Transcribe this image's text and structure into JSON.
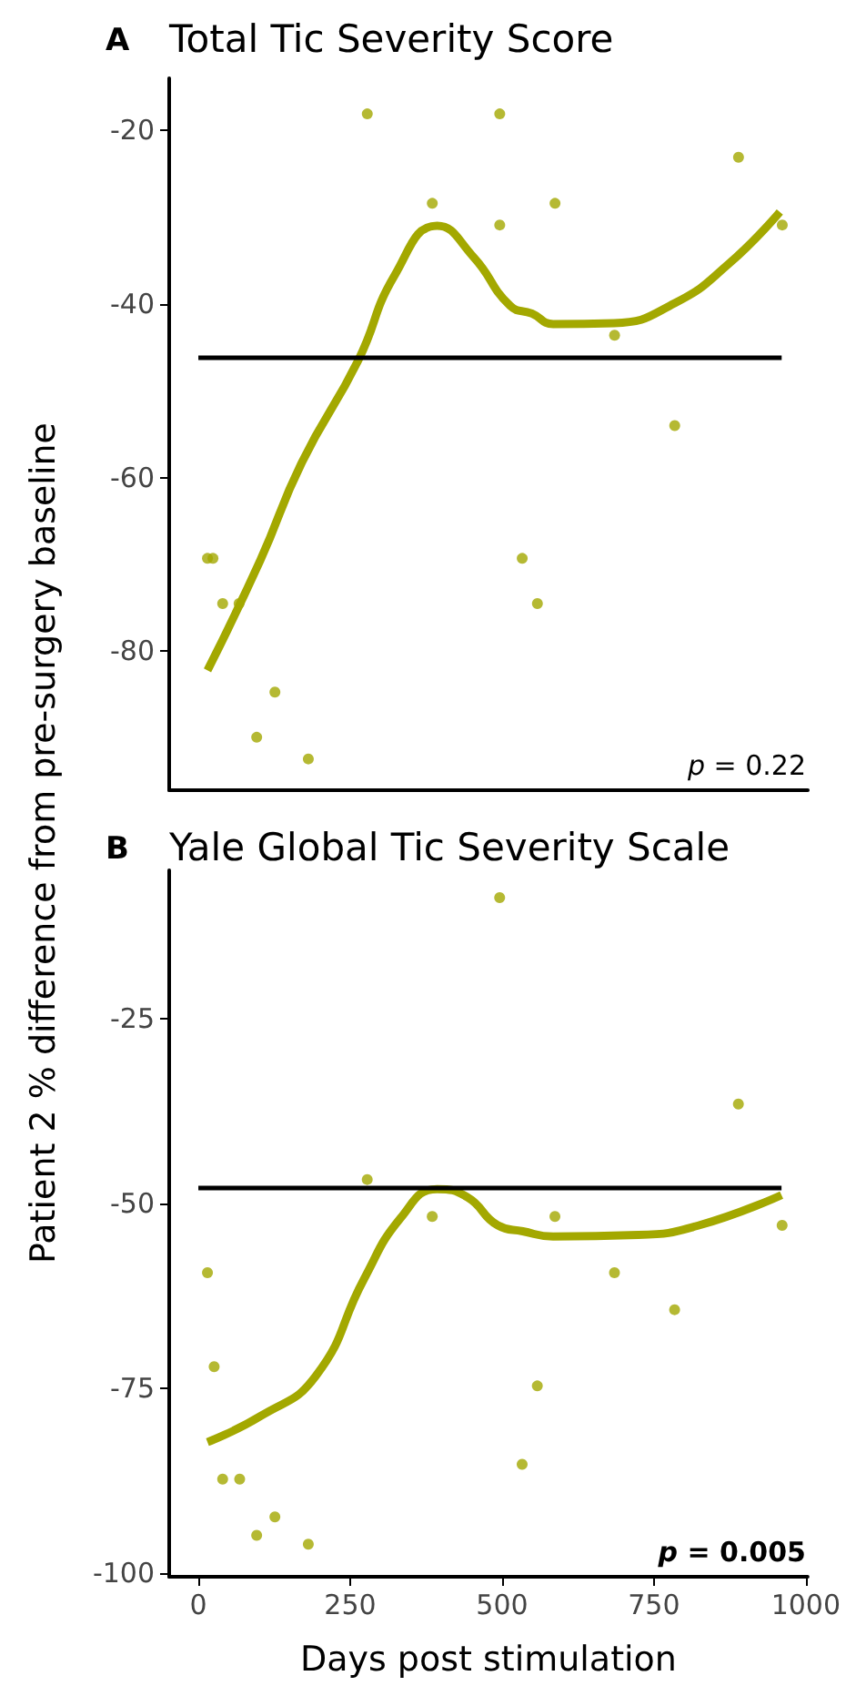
{
  "chart_data": [
    {
      "type": "scatter",
      "title": "Total Tic Severity Score",
      "ylabel": "Patient 2 % difference from pre-surgery baseline",
      "annotations": [
        "A",
        "p = 0.22"
      ],
      "xlim": [
        -48,
        1003
      ],
      "ylim": [
        -96,
        -14
      ],
      "yticks": [
        -20,
        -40,
        -60,
        -80
      ],
      "tick_labels": "y",
      "grid": false,
      "series": [
        {
          "marker": "circle",
          "color": "#a3a800",
          "x": [
            15,
            24,
            40,
            67,
            96,
            126,
            181,
            278,
            385,
            496,
            496,
            533,
            558,
            587,
            685,
            784,
            889,
            961
          ],
          "values": [
            -69.3,
            -69.3,
            -74.5,
            -74.5,
            -89.9,
            -84.7,
            -92.4,
            -18.1,
            -28.4,
            -18.1,
            -30.9,
            -69.3,
            -74.5,
            -28.4,
            -43.6,
            -54.0,
            -23.1,
            -30.9
          ]
        },
        {
          "type": "line",
          "color": "#a3a800",
          "x": [
            15,
            102,
            170,
            263,
            323,
            393,
            453,
            513,
            549,
            584,
            684,
            784,
            874,
            957
          ],
          "values": [
            -82.2,
            -69.5,
            -58.3,
            -46.5,
            -36.7,
            -31.0,
            -34.6,
            -40.2,
            -41.1,
            -42.3,
            -42.2,
            -39.9,
            -35.3,
            -29.4
          ]
        }
      ],
      "ref_lines": [
        {
          "axis": "y",
          "value": -46.2,
          "color": "#000000"
        }
      ]
    },
    {
      "type": "scatter",
      "title": "Yale Global Tic Severity Scale",
      "xlabel": "Days post stimulation",
      "annotations": [
        "B",
        "p = 0.005"
      ],
      "xlim": [
        -48,
        1003
      ],
      "ylim": [
        -100.5,
        -5
      ],
      "xticks": [
        0,
        250,
        500,
        750,
        1000
      ],
      "yticks": [
        -25,
        -50,
        -75,
        -100
      ],
      "grid": false,
      "series": [
        {
          "marker": "circle",
          "color": "#a3a800",
          "x": [
            15,
            26,
            40,
            68,
            96,
            126,
            181,
            278,
            385,
            496,
            533,
            558,
            587,
            685,
            784,
            889,
            961
          ],
          "values": [
            -59.4,
            -72.1,
            -87.3,
            -87.3,
            -94.9,
            -92.4,
            -96.1,
            -46.8,
            -51.8,
            -8.7,
            -85.3,
            -74.7,
            -51.8,
            -59.4,
            -64.4,
            -36.6,
            -53.0
          ]
        },
        {
          "type": "line",
          "color": "#a3a800",
          "x": [
            15,
            102,
            193,
            273,
            333,
            393,
            443,
            493,
            534,
            584,
            724,
            824,
            960
          ],
          "values": [
            -82.3,
            -78.8,
            -73.4,
            -60.2,
            -52.0,
            -48.1,
            -49.2,
            -53.0,
            -53.8,
            -54.5,
            -54.3,
            -53.0,
            -48.9
          ]
        }
      ],
      "ref_lines": [
        {
          "axis": "y",
          "value": -48.0,
          "color": "#000000"
        }
      ]
    }
  ]
}
